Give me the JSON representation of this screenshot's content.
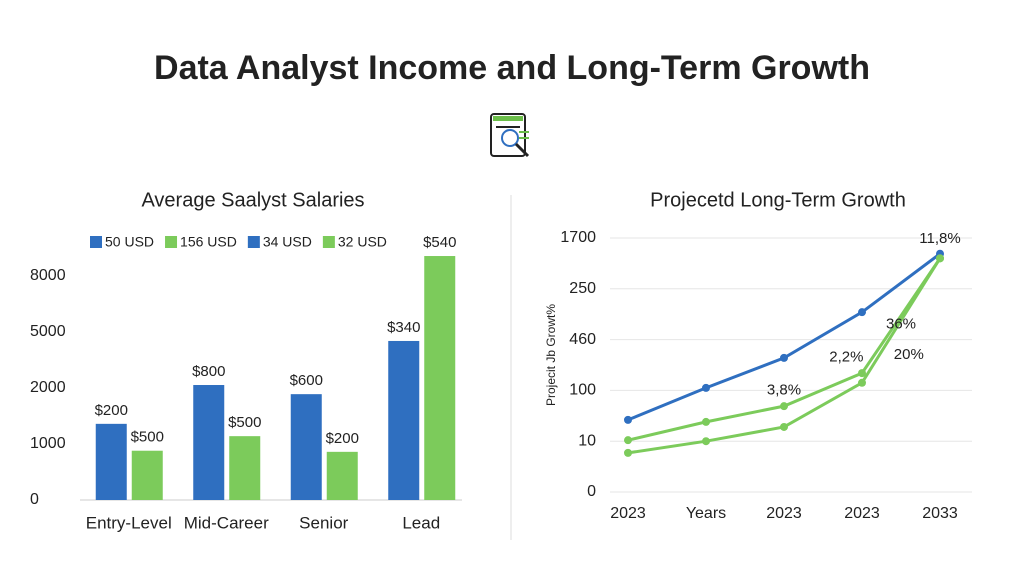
{
  "title": "Data Analyst Income and Long-Term Growth",
  "chart_data": [
    {
      "type": "bar",
      "title": "Average Saalyst Salaries",
      "legend": [
        {
          "label": "50 USD",
          "color": "#2f6fc0"
        },
        {
          "label": "156 USD",
          "color": "#7ccb5b"
        },
        {
          "label": "34 USD",
          "color": "#2f6fc0"
        },
        {
          "label": "32 USD",
          "color": "#7ccb5b"
        }
      ],
      "categories": [
        "Entry-Level",
        "Mid-Career",
        "Senior",
        "Lead"
      ],
      "series": [
        {
          "color": "#2f6fc0",
          "values": [
            1360,
            2160,
            1890,
            4520
          ]
        },
        {
          "color": "#7ccb5b",
          "values": [
            880,
            1140,
            860,
            9070
          ]
        }
      ],
      "annotations": [
        [
          "$200",
          "$800",
          "$600",
          "$340"
        ],
        [
          "$500",
          "$500",
          "$200",
          "$540"
        ]
      ],
      "ylim": [
        0,
        9100
      ],
      "yticks": [
        0,
        1000,
        2000,
        5000,
        8000
      ]
    },
    {
      "type": "line",
      "title": "Projecetd Long-Term Growth",
      "y_label": "Projecit Jb Growt%",
      "categories": [
        "2023",
        "Years",
        "2023",
        "2023",
        "2033"
      ],
      "series": [
        {
          "color": "#2f6fc0",
          "values": [
            1.42,
            2.05,
            2.64,
            3.54,
            4.69
          ]
        },
        {
          "color": "#7ccb5b",
          "values": [
            1.02,
            1.38,
            1.69,
            2.34,
            4.6
          ]
        },
        {
          "color": "#7ccb5b",
          "values": [
            0.77,
            1.0,
            1.28,
            2.15,
            4.6
          ]
        }
      ],
      "annotations": [
        {
          "text": "11,8%",
          "x": 4,
          "y": 4.98
        },
        {
          "text": "36%",
          "x": 3.5,
          "y": 3.3
        },
        {
          "text": "2,2%",
          "x": 2.8,
          "y": 2.65
        },
        {
          "text": "20%",
          "x": 3.6,
          "y": 2.7
        },
        {
          "text": "3,8%",
          "x": 2.0,
          "y": 2.0
        }
      ],
      "ylim": [
        0,
        5.3
      ],
      "yticks": [
        {
          "value": 0,
          "label": "0"
        },
        {
          "value": 1,
          "label": "10"
        },
        {
          "value": 2,
          "label": "100"
        },
        {
          "value": 3,
          "label": "460"
        },
        {
          "value": 4,
          "label": "250"
        },
        {
          "value": 5,
          "label": "1700"
        }
      ],
      "grid": true
    }
  ]
}
